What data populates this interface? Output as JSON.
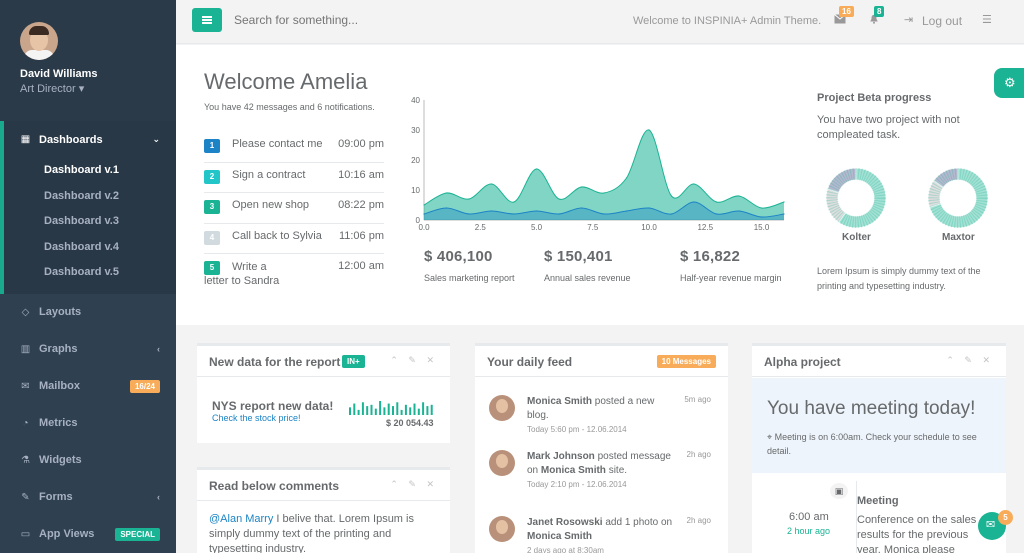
{
  "user": {
    "name": "David Williams",
    "role": "Art Director"
  },
  "nav": {
    "dashboards": "Dashboards",
    "sub": [
      "Dashboard v.1",
      "Dashboard v.2",
      "Dashboard v.3",
      "Dashboard v.4",
      "Dashboard v.5"
    ],
    "layouts": "Layouts",
    "graphs": "Graphs",
    "mailbox": "Mailbox",
    "mailbox_badge": "16/24",
    "metrics": "Metrics",
    "widgets": "Widgets",
    "forms": "Forms",
    "appviews": "App Views",
    "appviews_badge": "SPECIAL"
  },
  "topbar": {
    "search_placeholder": "Search for something...",
    "welcome": "Welcome to INSPINIA+ Admin Theme.",
    "mail_count": "16",
    "alert_count": "8",
    "logout": "Log out"
  },
  "hero": {
    "title": "Welcome Amelia",
    "subtitle": "You have 42 messages and 6 notifications.",
    "todos": [
      {
        "num": "1",
        "text": "Please contact me",
        "time": "09:00 pm",
        "color": "#1c84c6"
      },
      {
        "num": "2",
        "text": "Sign a contract",
        "time": "10:16 am",
        "color": "#23c6c8"
      },
      {
        "num": "3",
        "text": "Open new shop",
        "time": "08:22 pm",
        "color": "#1ab394"
      },
      {
        "num": "4",
        "text": "Call back to Sylvia",
        "time": "11:06 pm",
        "color": "#d1dade"
      },
      {
        "num": "5",
        "text": "Write a letter to Sandra",
        "time": "12:00 am",
        "color": "#1ab394"
      }
    ],
    "stats": [
      {
        "value": "$ 406,100",
        "label": "Sales marketing report"
      },
      {
        "value": "$ 150,401",
        "label": "Annual sales revenue"
      },
      {
        "value": "$ 16,822",
        "label": "Half-year revenue margin"
      }
    ]
  },
  "chart_data": {
    "type": "area",
    "xlim": [
      0,
      16
    ],
    "ylim": [
      0,
      40
    ],
    "xticks": [
      "0.0",
      "2.5",
      "5.0",
      "7.5",
      "10.0",
      "12.5",
      "15.0"
    ],
    "yticks": [
      "0",
      "10",
      "20",
      "30",
      "40"
    ],
    "series": [
      {
        "color": "#1ab394",
        "x": [
          0,
          1,
          2,
          3,
          4,
          5,
          6,
          7,
          8,
          9,
          10,
          11,
          12,
          13,
          14,
          15,
          16
        ],
        "y": [
          5,
          9,
          7,
          12,
          6,
          17,
          7,
          11,
          9,
          14,
          30,
          8,
          12,
          6,
          8,
          4,
          6
        ]
      },
      {
        "color": "#1c84c6",
        "x": [
          0,
          1,
          2,
          3,
          4,
          5,
          6,
          7,
          8,
          9,
          10,
          11,
          12,
          13,
          14,
          15,
          16
        ],
        "y": [
          2,
          4,
          2,
          3,
          2,
          3,
          2,
          4,
          2,
          3,
          4,
          2,
          6,
          2,
          3,
          1,
          2
        ]
      }
    ]
  },
  "project": {
    "title": "Project Beta progress",
    "subtitle": "You have two project with not compleated task.",
    "donuts": [
      {
        "label": "Kolter",
        "values": [
          60,
          20,
          20
        ]
      },
      {
        "label": "Maxtor",
        "values": [
          70,
          15,
          15
        ]
      }
    ],
    "footer": "Lorem Ipsum is simply dummy text of the printing and typesetting industry."
  },
  "report": {
    "title": "New data for the report",
    "label": "IN+",
    "headline": "NYS report new data!",
    "link": "Check the stock price!",
    "amount": "$ 20 054.43",
    "spark": [
      6,
      9,
      4,
      10,
      7,
      8,
      5,
      11,
      6,
      9,
      7,
      10,
      4,
      8,
      6,
      9,
      5,
      10,
      7,
      8
    ]
  },
  "comments": {
    "title": "Read below comments",
    "text_mention": "@Alan Marry",
    "text": " I belive that. Lorem Ipsum is simply dummy text of the printing and typesetting industry."
  },
  "feed": {
    "title": "Your daily feed",
    "badge": "10 Messages",
    "items": [
      {
        "name": "Monica Smith",
        "action": "posted a new blog.",
        "time": "Today 5:60 pm - 12.06.2014",
        "ago": "5m ago"
      },
      {
        "name": "Mark Johnson",
        "action": "posted message on",
        "target": "Monica Smith",
        "target_suffix": "site.",
        "time": "Today 2:10 pm - 12.06.2014",
        "ago": "2h ago"
      },
      {
        "name": "Janet Rosowski",
        "action": "add 1 photo on",
        "target": "Monica Smith",
        "time": "2 days ago at 8:30am",
        "ago": "2h ago"
      }
    ]
  },
  "alpha": {
    "title": "Alpha project",
    "headline": "You have meeting today!",
    "note": "Meeting is on 6:00am. Check your schedule to see detail.",
    "time": "6:00 am",
    "ago": "2 hour ago",
    "event": "Meeting",
    "event_text": "Conference on the sales results for the previous year. Monica please"
  },
  "chat": {
    "badge": "5"
  }
}
